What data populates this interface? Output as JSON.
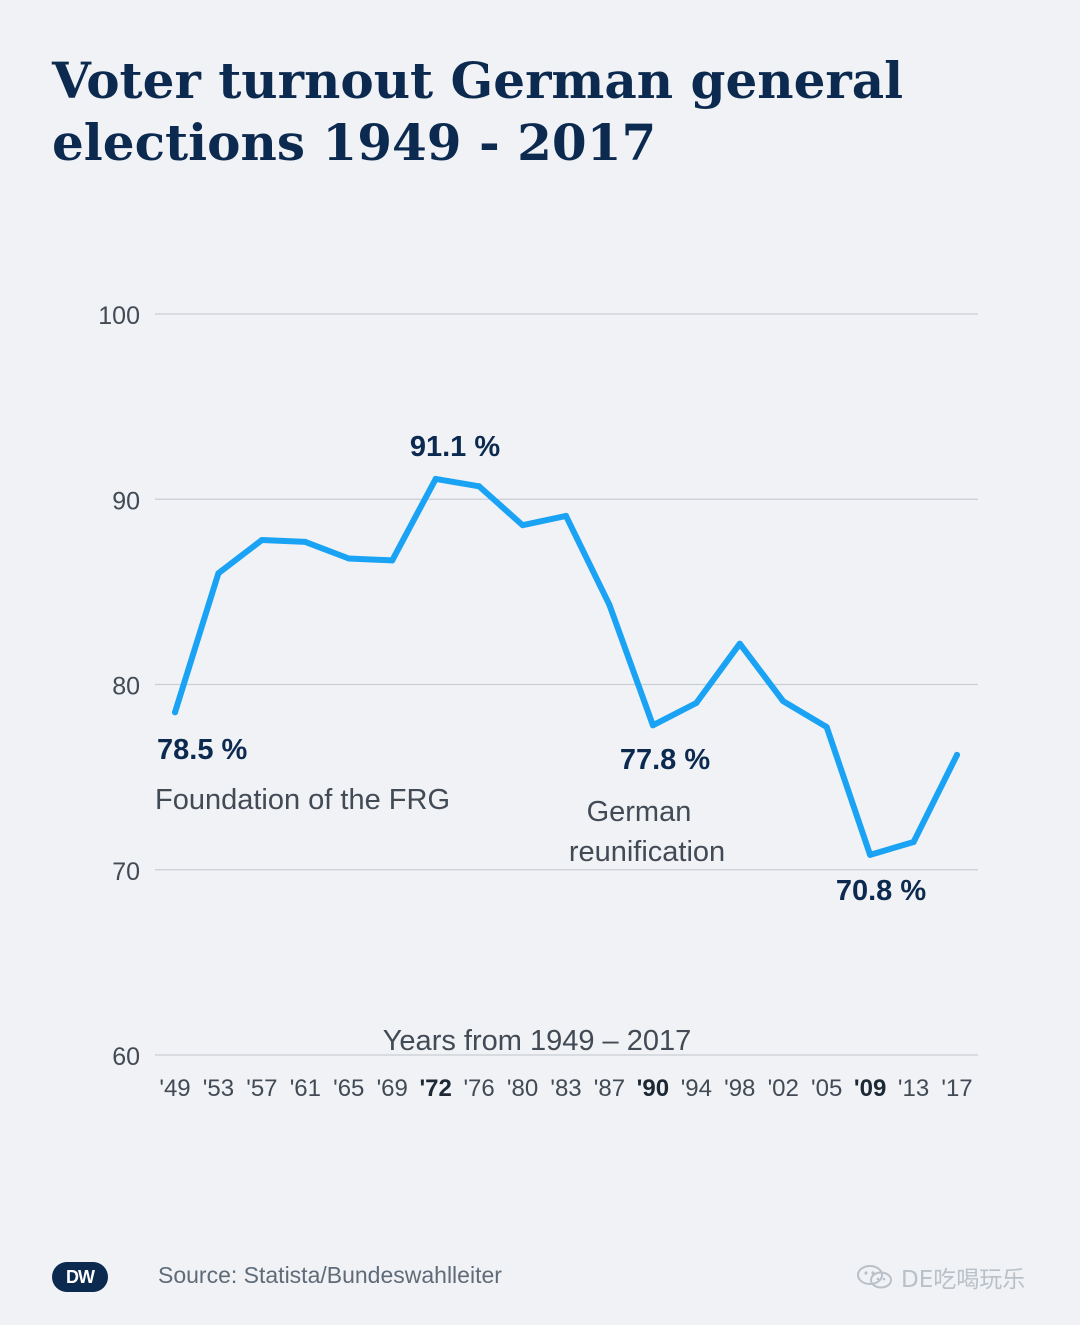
{
  "title_lines": [
    "Voter turnout German general",
    "elections 1949 - 2017"
  ],
  "source": "Source: Statista/Bundeswahlleiter",
  "logo_text": "DW",
  "watermark_text": "DE吃喝玩乐",
  "colors": {
    "line": "#1aa3f5",
    "title": "#0c2a4f",
    "axis_text": "#424a55",
    "grid": "#c9ced4",
    "background": "#f0f2f5"
  },
  "chart_data": {
    "type": "line",
    "title": "Voter turnout German general elections 1949 - 2017",
    "xlabel": "Years from 1949 – 2017",
    "ylabel": "",
    "ylim": [
      60,
      100
    ],
    "yticks": [
      60,
      70,
      80,
      90,
      100
    ],
    "grid": true,
    "categories": [
      "'49",
      "'53",
      "'57",
      "'61",
      "'65",
      "'69",
      "'72",
      "'76",
      "'80",
      "'83",
      "'87",
      "'90",
      "'94",
      "'98",
      "'02",
      "'05",
      "'09",
      "'13",
      "'17"
    ],
    "bold_categories": [
      "'72",
      "'90",
      "'09"
    ],
    "series": [
      {
        "values": [
          78.5,
          86.0,
          87.8,
          87.7,
          86.8,
          86.7,
          91.1,
          90.7,
          88.6,
          89.1,
          84.3,
          77.8,
          79.0,
          82.2,
          79.1,
          77.7,
          70.8,
          71.5,
          76.2
        ]
      }
    ],
    "annotations": [
      {
        "index": 0,
        "value_label": "78.5 %",
        "note": "Foundation of the FRG"
      },
      {
        "index": 6,
        "value_label": "91.1 %",
        "note": ""
      },
      {
        "index": 11,
        "value_label": "77.8 %",
        "note": "German reunification"
      },
      {
        "index": 16,
        "value_label": "70.8 %",
        "note": ""
      }
    ]
  }
}
